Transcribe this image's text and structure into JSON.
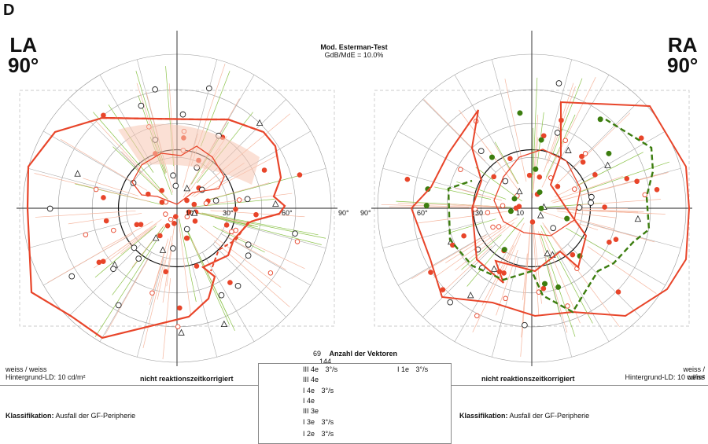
{
  "panel_letter": "D",
  "test_header": {
    "title": "Mod. Esterman-Test",
    "subtitle": "GdB/MdE = 10.0%"
  },
  "left_eye": {
    "label_eye": "LA",
    "label_angle": "90°",
    "stimulus": "weiss / weiss",
    "background": "Hintergrund-LD: 10 cd/m²",
    "correction": "nicht reaktionszeitkorrigiert",
    "class_label": "Klassifikation:",
    "class_value": "Ausfall der GF-Peripherie",
    "vectors": "69",
    "ticks": [
      "10",
      "30°",
      "60°",
      "90°"
    ]
  },
  "right_eye": {
    "label_eye": "RA",
    "label_angle": "90°",
    "stimulus": "weiss / weiss",
    "background": "Hintergrund-LD: 10 cd/m²",
    "correction": "nicht reaktionszeitkorrigiert",
    "class_label": "Klassifikation:",
    "class_value": "Ausfall der GF-Peripherie",
    "vectors": "144",
    "ticks": [
      "90°",
      "60°",
      "30",
      "10"
    ]
  },
  "vectors_label": "Anzahl der Vektoren",
  "legend": [
    {
      "label": "III 4e",
      "speed": "3°/s"
    },
    {
      "label": "III 4e",
      "speed": ""
    },
    {
      "label": "I 4e",
      "speed": "3°/s"
    },
    {
      "label": "I 4e",
      "speed": ""
    },
    {
      "label": "III 3e",
      "speed": ""
    },
    {
      "label": "I 3e",
      "speed": "3°/s"
    },
    {
      "label": "I 2e",
      "speed": "3°/s"
    },
    {
      "label": "I 1e",
      "speed": "3°/s"
    }
  ],
  "colors": {
    "red": "#e8452a",
    "green": "#3c7d0f",
    "pink": "#f5b7a0",
    "lightgreen": "#8bc34a"
  }
}
